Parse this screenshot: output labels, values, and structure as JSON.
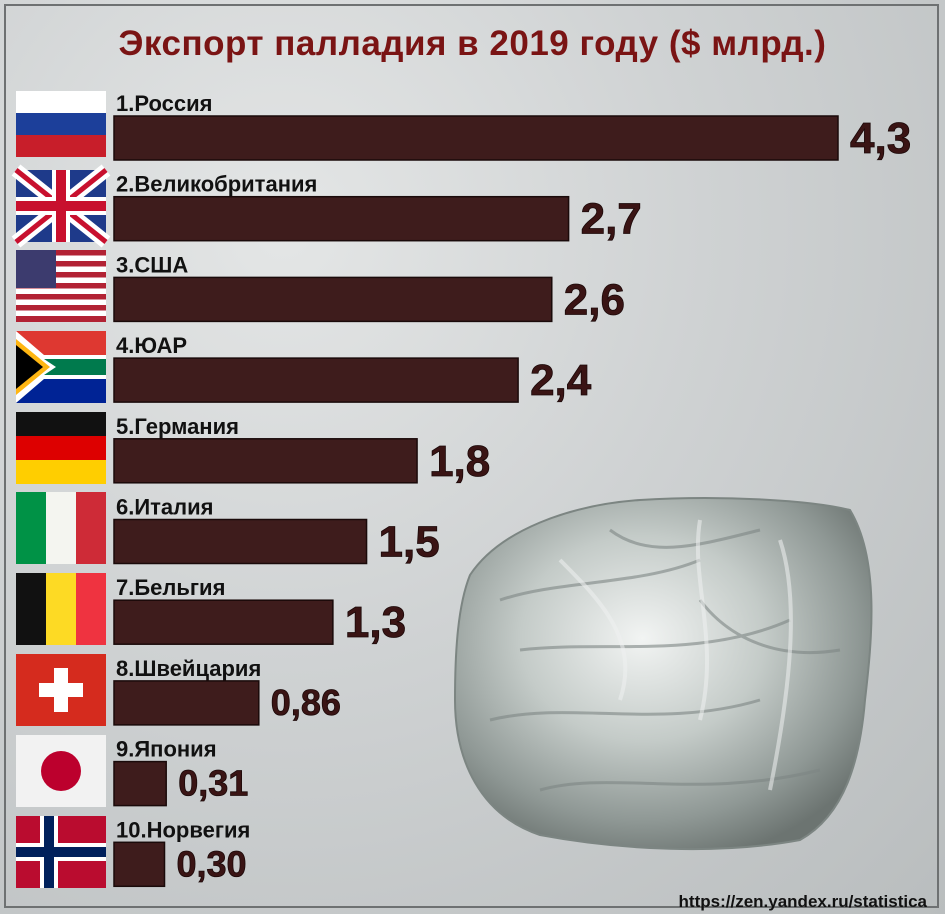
{
  "title": "Экспорт палладия в 2019 году ($ млрд.)",
  "footer_url": "https://zen.yandex.ru/statistica",
  "colors": {
    "bar": "#3e1c1c",
    "title": "#7a1414",
    "bar_stroke": "#1a0a0a"
  },
  "decoration": {
    "image": "palladium-nugget"
  },
  "chart_data": {
    "type": "bar",
    "orientation": "horizontal",
    "title": "Экспорт палладия в 2019 году ($ млрд.)",
    "xlabel": "",
    "ylabel": "",
    "categories": [
      "1.Россия",
      "2.Великобритания",
      "3.США",
      "4.ЮАР",
      "5.Германия",
      "6.Италия",
      "7.Бельгия",
      "8.Швейцария",
      "9.Япония",
      "10.Норвегия"
    ],
    "values": [
      4.3,
      2.7,
      2.6,
      2.4,
      1.8,
      1.5,
      1.3,
      0.86,
      0.31,
      0.3
    ],
    "value_labels": [
      "4,3",
      "2,7",
      "2,6",
      "2,4",
      "1,8",
      "1,5",
      "1,3",
      "0,86",
      "0,31",
      "0,30"
    ],
    "flags": [
      "russia-flag-icon",
      "uk-flag-icon",
      "usa-flag-icon",
      "south-africa-flag-icon",
      "germany-flag-icon",
      "italy-flag-icon",
      "belgium-flag-icon",
      "switzerland-flag-icon",
      "japan-flag-icon",
      "norway-flag-icon"
    ],
    "grid": false,
    "legend": "none"
  }
}
